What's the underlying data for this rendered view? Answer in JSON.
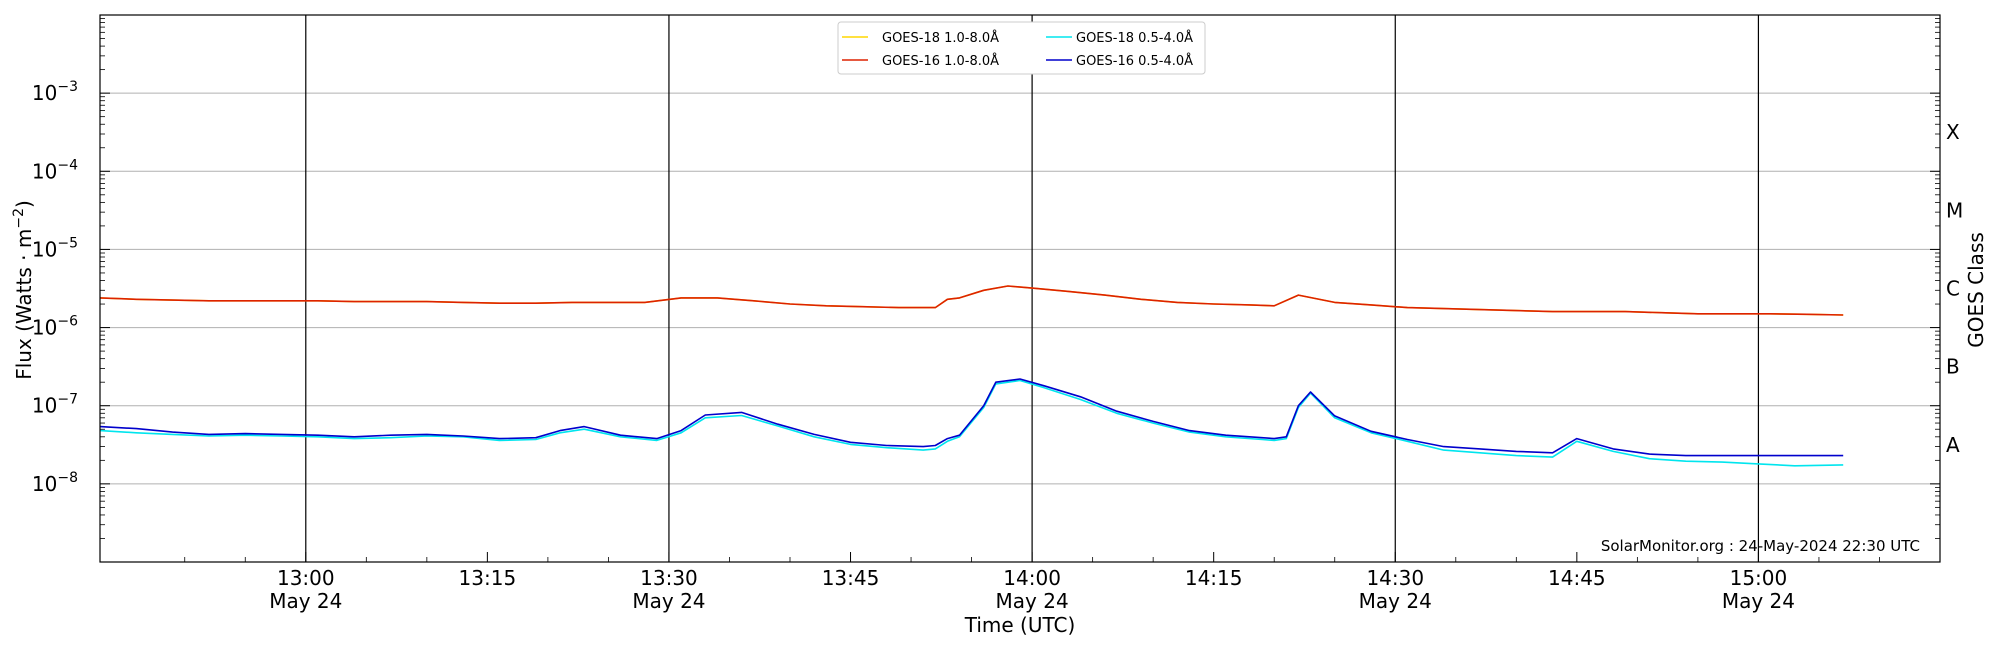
{
  "chart_data": {
    "type": "line",
    "title": "",
    "xlabel": "Time (UTC)",
    "ylabel": "Flux (Watts · m",
    "ylabel_sup": "−2",
    "ylabel_close": ")",
    "right_label": "GOES Class",
    "yscale": "log",
    "xlim": [
      "12:43",
      "15:15"
    ],
    "ylim": [
      1e-09,
      0.01
    ],
    "y_ticks": [
      {
        "value": 1e-08,
        "label": "10",
        "exp": "−8"
      },
      {
        "value": 1e-07,
        "label": "10",
        "exp": "−7"
      },
      {
        "value": 1e-06,
        "label": "10",
        "exp": "−6"
      },
      {
        "value": 1e-05,
        "label": "10",
        "exp": "−5"
      },
      {
        "value": 0.0001,
        "label": "10",
        "exp": "−4"
      },
      {
        "value": 0.001,
        "label": "10",
        "exp": "−3"
      }
    ],
    "x_ticks": [
      {
        "time": "13:00",
        "label": "13:00",
        "date": "May 24",
        "major": true
      },
      {
        "time": "13:15",
        "label": "13:15",
        "date": "",
        "major": false
      },
      {
        "time": "13:30",
        "label": "13:30",
        "date": "May 24",
        "major": true
      },
      {
        "time": "13:45",
        "label": "13:45",
        "date": "",
        "major": false
      },
      {
        "time": "14:00",
        "label": "14:00",
        "date": "May 24",
        "major": true
      },
      {
        "time": "14:15",
        "label": "14:15",
        "date": "",
        "major": false
      },
      {
        "time": "14:30",
        "label": "14:30",
        "date": "May 24",
        "major": true
      },
      {
        "time": "14:45",
        "label": "14:45",
        "date": "",
        "major": false
      },
      {
        "time": "15:00",
        "label": "15:00",
        "date": "May 24",
        "major": true
      }
    ],
    "classes": [
      {
        "label": "A",
        "lo": 1e-08,
        "hi": 1e-07
      },
      {
        "label": "B",
        "lo": 1e-07,
        "hi": 1e-06
      },
      {
        "label": "C",
        "lo": 1e-06,
        "hi": 1e-05
      },
      {
        "label": "M",
        "lo": 1e-05,
        "hi": 0.0001
      },
      {
        "label": "X",
        "lo": 0.0001,
        "hi": 0.001
      }
    ],
    "grid": true,
    "legend_position": "top-center",
    "annotation": "SolarMonitor.org : 24-May-2024 22:30 UTC",
    "legend": [
      {
        "label": "GOES-18 1.0-8.0Å",
        "color": "#ffd700"
      },
      {
        "label": "GOES-16 1.0-8.0Å",
        "color": "#dd2200"
      },
      {
        "label": "GOES-18 0.5-4.0Å",
        "color": "#00e5ee"
      },
      {
        "label": "GOES-16 0.5-4.0Å",
        "color": "#0000cc"
      }
    ],
    "series": [
      {
        "name": "GOES-18 1.0-8.0Å",
        "color": "#ffd700",
        "x": [
          "12:43",
          "12:46",
          "12:49",
          "12:52",
          "12:55",
          "12:58",
          "13:01",
          "13:04",
          "13:07",
          "13:10",
          "13:13",
          "13:16",
          "13:19",
          "13:22",
          "13:25",
          "13:28",
          "13:31",
          "13:34",
          "13:37",
          "13:40",
          "13:43",
          "13:46",
          "13:49",
          "13:52",
          "13:53",
          "13:54",
          "13:56",
          "13:58",
          "14:00",
          "14:03",
          "14:06",
          "14:09",
          "14:12",
          "14:15",
          "14:18",
          "14:20",
          "14:22",
          "14:25",
          "14:28",
          "14:31",
          "14:34",
          "14:37",
          "14:40",
          "14:43",
          "14:46",
          "14:49",
          "14:52",
          "14:55",
          "14:58",
          "15:01",
          "15:04",
          "15:07"
        ],
        "y": [
          2.4e-06,
          2.3e-06,
          2.25e-06,
          2.2e-06,
          2.2e-06,
          2.2e-06,
          2.2e-06,
          2.15e-06,
          2.15e-06,
          2.15e-06,
          2.1e-06,
          2.05e-06,
          2.05e-06,
          2.1e-06,
          2.1e-06,
          2.1e-06,
          2.4e-06,
          2.4e-06,
          2.2e-06,
          2e-06,
          1.9e-06,
          1.85e-06,
          1.8e-06,
          1.8e-06,
          2.3e-06,
          2.4e-06,
          3e-06,
          3.4e-06,
          3.2e-06,
          2.9e-06,
          2.6e-06,
          2.3e-06,
          2.1e-06,
          2e-06,
          1.95e-06,
          1.9e-06,
          2.6e-06,
          2.1e-06,
          1.95e-06,
          1.8e-06,
          1.75e-06,
          1.7e-06,
          1.65e-06,
          1.6e-06,
          1.6e-06,
          1.6e-06,
          1.55e-06,
          1.5e-06,
          1.5e-06,
          1.5e-06,
          1.48e-06,
          1.45e-06
        ]
      },
      {
        "name": "GOES-16 1.0-8.0Å",
        "color": "#dd2200",
        "x": [
          "12:43",
          "12:46",
          "12:49",
          "12:52",
          "12:55",
          "12:58",
          "13:01",
          "13:04",
          "13:07",
          "13:10",
          "13:13",
          "13:16",
          "13:19",
          "13:22",
          "13:25",
          "13:28",
          "13:31",
          "13:34",
          "13:37",
          "13:40",
          "13:43",
          "13:46",
          "13:49",
          "13:52",
          "13:53",
          "13:54",
          "13:56",
          "13:58",
          "14:00",
          "14:03",
          "14:06",
          "14:09",
          "14:12",
          "14:15",
          "14:18",
          "14:20",
          "14:22",
          "14:25",
          "14:28",
          "14:31",
          "14:34",
          "14:37",
          "14:40",
          "14:43",
          "14:46",
          "14:49",
          "14:52",
          "14:55",
          "14:58",
          "15:01",
          "15:04",
          "15:07"
        ],
        "y": [
          2.4e-06,
          2.3e-06,
          2.25e-06,
          2.2e-06,
          2.2e-06,
          2.2e-06,
          2.2e-06,
          2.15e-06,
          2.15e-06,
          2.15e-06,
          2.1e-06,
          2.05e-06,
          2.05e-06,
          2.1e-06,
          2.1e-06,
          2.1e-06,
          2.4e-06,
          2.4e-06,
          2.2e-06,
          2e-06,
          1.9e-06,
          1.85e-06,
          1.8e-06,
          1.8e-06,
          2.3e-06,
          2.4e-06,
          3e-06,
          3.4e-06,
          3.2e-06,
          2.9e-06,
          2.6e-06,
          2.3e-06,
          2.1e-06,
          2e-06,
          1.95e-06,
          1.9e-06,
          2.6e-06,
          2.1e-06,
          1.95e-06,
          1.8e-06,
          1.75e-06,
          1.7e-06,
          1.65e-06,
          1.6e-06,
          1.6e-06,
          1.6e-06,
          1.55e-06,
          1.5e-06,
          1.5e-06,
          1.5e-06,
          1.48e-06,
          1.45e-06
        ]
      },
      {
        "name": "GOES-18 0.5-4.0Å",
        "color": "#00e5ee",
        "x": [
          "12:43",
          "12:46",
          "12:49",
          "12:52",
          "12:55",
          "12:58",
          "13:01",
          "13:04",
          "13:07",
          "13:10",
          "13:13",
          "13:16",
          "13:19",
          "13:21",
          "13:23",
          "13:26",
          "13:29",
          "13:31",
          "13:33",
          "13:36",
          "13:39",
          "13:42",
          "13:45",
          "13:48",
          "13:51",
          "13:52",
          "13:53",
          "13:54",
          "13:56",
          "13:57",
          "13:59",
          "14:01",
          "14:04",
          "14:07",
          "14:10",
          "14:13",
          "14:16",
          "14:19",
          "14:20",
          "14:21",
          "14:22",
          "14:23",
          "14:25",
          "14:28",
          "14:31",
          "14:34",
          "14:37",
          "14:40",
          "14:43",
          "14:45",
          "14:48",
          "14:51",
          "14:54",
          "14:57",
          "15:00",
          "15:03",
          "15:07"
        ],
        "y": [
          4.8e-08,
          4.5e-08,
          4.3e-08,
          4.1e-08,
          4.2e-08,
          4.1e-08,
          4e-08,
          3.8e-08,
          3.9e-08,
          4.1e-08,
          4e-08,
          3.6e-08,
          3.7e-08,
          4.5e-08,
          5e-08,
          4e-08,
          3.6e-08,
          4.5e-08,
          7e-08,
          7.5e-08,
          5.5e-08,
          4e-08,
          3.2e-08,
          2.9e-08,
          2.7e-08,
          2.8e-08,
          3.5e-08,
          4e-08,
          9.5e-08,
          1.9e-07,
          2.1e-07,
          1.7e-07,
          1.2e-07,
          8e-08,
          6e-08,
          4.6e-08,
          4e-08,
          3.7e-08,
          3.6e-08,
          3.8e-08,
          9.5e-08,
          1.45e-07,
          7e-08,
          4.5e-08,
          3.5e-08,
          2.7e-08,
          2.5e-08,
          2.3e-08,
          2.2e-08,
          3.5e-08,
          2.6e-08,
          2.1e-08,
          1.95e-08,
          1.9e-08,
          1.8e-08,
          1.7e-08,
          1.75e-08
        ]
      },
      {
        "name": "GOES-16 0.5-4.0Å",
        "color": "#0000cc",
        "x": [
          "12:43",
          "12:46",
          "12:49",
          "12:52",
          "12:55",
          "12:58",
          "13:01",
          "13:04",
          "13:07",
          "13:10",
          "13:13",
          "13:16",
          "13:19",
          "13:21",
          "13:23",
          "13:26",
          "13:29",
          "13:31",
          "13:33",
          "13:36",
          "13:39",
          "13:42",
          "13:45",
          "13:48",
          "13:51",
          "13:52",
          "13:53",
          "13:54",
          "13:56",
          "13:57",
          "13:59",
          "14:01",
          "14:04",
          "14:07",
          "14:10",
          "14:13",
          "14:16",
          "14:19",
          "14:20",
          "14:21",
          "14:22",
          "14:23",
          "14:25",
          "14:28",
          "14:31",
          "14:34",
          "14:37",
          "14:40",
          "14:43",
          "14:45",
          "14:48",
          "14:51",
          "14:54",
          "14:57",
          "15:00",
          "15:03",
          "15:07"
        ],
        "y": [
          5.4e-08,
          5.1e-08,
          4.6e-08,
          4.3e-08,
          4.4e-08,
          4.3e-08,
          4.2e-08,
          4e-08,
          4.2e-08,
          4.3e-08,
          4.1e-08,
          3.8e-08,
          3.9e-08,
          4.8e-08,
          5.4e-08,
          4.2e-08,
          3.8e-08,
          4.8e-08,
          7.6e-08,
          8.2e-08,
          5.8e-08,
          4.3e-08,
          3.4e-08,
          3.1e-08,
          3e-08,
          3.1e-08,
          3.8e-08,
          4.2e-08,
          1e-07,
          2e-07,
          2.2e-07,
          1.8e-07,
          1.3e-07,
          8.5e-08,
          6.3e-08,
          4.8e-08,
          4.2e-08,
          3.9e-08,
          3.8e-08,
          4e-08,
          1e-07,
          1.5e-07,
          7.4e-08,
          4.7e-08,
          3.7e-08,
          3e-08,
          2.8e-08,
          2.6e-08,
          2.5e-08,
          3.8e-08,
          2.8e-08,
          2.4e-08,
          2.3e-08,
          2.3e-08,
          2.3e-08,
          2.3e-08,
          2.3e-08
        ]
      }
    ]
  }
}
